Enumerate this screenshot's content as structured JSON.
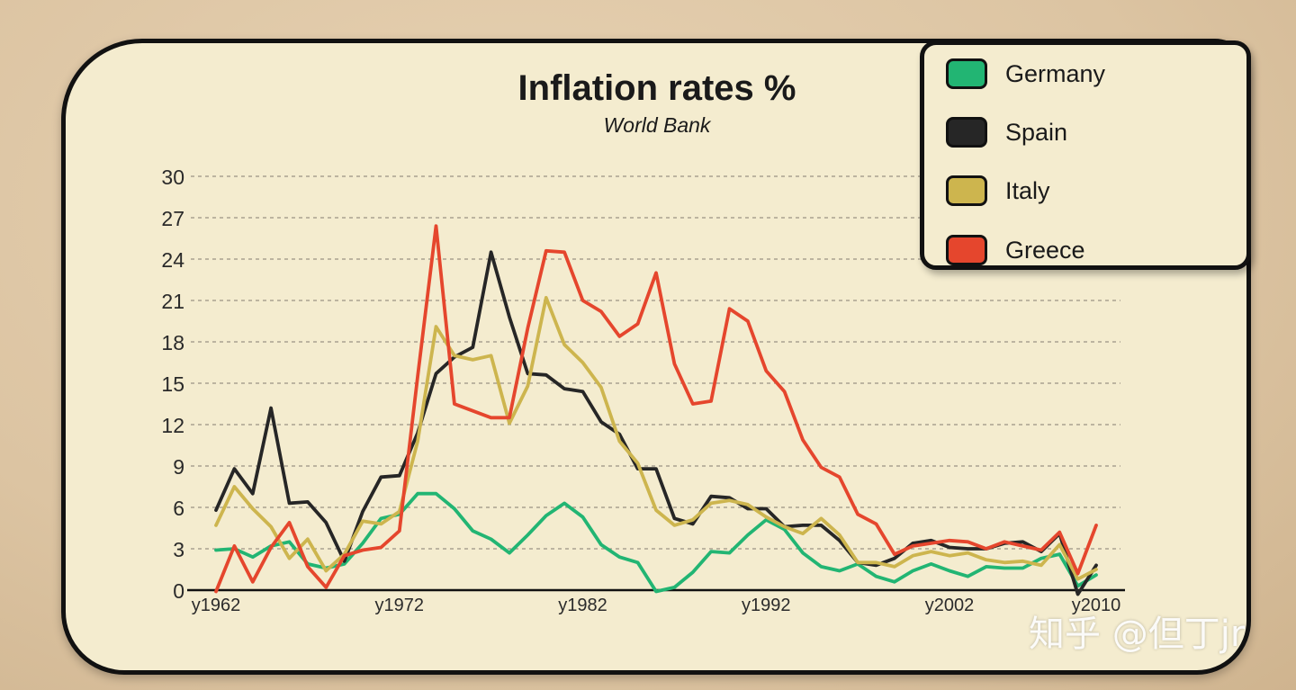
{
  "chart_data": {
    "type": "line",
    "title": "Inflation rates %",
    "subtitle": "World Bank",
    "xlabel": "",
    "ylabel": "",
    "x": [
      1962,
      1963,
      1964,
      1965,
      1966,
      1967,
      1968,
      1969,
      1970,
      1971,
      1972,
      1973,
      1974,
      1975,
      1976,
      1977,
      1978,
      1979,
      1980,
      1981,
      1982,
      1983,
      1984,
      1985,
      1986,
      1987,
      1988,
      1989,
      1990,
      1991,
      1992,
      1993,
      1994,
      1995,
      1996,
      1997,
      1998,
      1999,
      2000,
      2001,
      2002,
      2003,
      2004,
      2005,
      2006,
      2007,
      2008,
      2009,
      2010
    ],
    "xticks": [
      {
        "value": 1962,
        "label": "y1962"
      },
      {
        "value": 1972,
        "label": "y1972"
      },
      {
        "value": 1982,
        "label": "y1982"
      },
      {
        "value": 1992,
        "label": "y1992"
      },
      {
        "value": 2002,
        "label": "y2002"
      },
      {
        "value": 2010,
        "label": "y2010"
      }
    ],
    "yticks": [
      0,
      3,
      6,
      9,
      12,
      15,
      18,
      21,
      24,
      27,
      30
    ],
    "ylim": [
      0,
      30
    ],
    "grid": "horizontal-dashed",
    "legend": "top-right",
    "series": [
      {
        "name": "Germany",
        "color": "#22b573",
        "values": [
          2.9,
          3.0,
          2.4,
          3.2,
          3.5,
          1.9,
          1.6,
          1.9,
          3.4,
          5.2,
          5.5,
          7.0,
          7.0,
          5.9,
          4.3,
          3.7,
          2.7,
          4.0,
          5.4,
          6.3,
          5.3,
          3.3,
          2.4,
          2.0,
          -0.1,
          0.2,
          1.3,
          2.8,
          2.7,
          4.0,
          5.1,
          4.4,
          2.7,
          1.7,
          1.4,
          1.9,
          1.0,
          0.6,
          1.4,
          1.9,
          1.4,
          1.0,
          1.7,
          1.6,
          1.6,
          2.3,
          2.6,
          0.3,
          1.1
        ]
      },
      {
        "name": "Spain",
        "color": "#262626",
        "values": [
          5.8,
          8.8,
          7.0,
          13.2,
          6.3,
          6.4,
          4.9,
          2.1,
          5.7,
          8.2,
          8.3,
          11.4,
          15.7,
          16.9,
          17.6,
          24.5,
          19.8,
          15.7,
          15.6,
          14.6,
          14.4,
          12.2,
          11.3,
          8.8,
          8.8,
          5.2,
          4.8,
          6.8,
          6.7,
          5.9,
          5.9,
          4.6,
          4.7,
          4.7,
          3.6,
          2.0,
          1.8,
          2.3,
          3.4,
          3.6,
          3.1,
          3.0,
          3.0,
          3.4,
          3.5,
          2.8,
          4.1,
          -0.3,
          1.8
        ]
      },
      {
        "name": "Italy",
        "color": "#cdb54e",
        "values": [
          4.7,
          7.5,
          5.9,
          4.6,
          2.3,
          3.7,
          1.4,
          2.6,
          5.0,
          4.8,
          5.7,
          10.8,
          19.1,
          17.0,
          16.7,
          17.0,
          12.1,
          14.8,
          21.2,
          17.8,
          16.5,
          14.7,
          10.8,
          9.2,
          5.8,
          4.7,
          5.1,
          6.3,
          6.5,
          6.2,
          5.3,
          4.6,
          4.1,
          5.2,
          4.0,
          2.0,
          2.0,
          1.7,
          2.5,
          2.8,
          2.5,
          2.7,
          2.2,
          2.0,
          2.1,
          1.8,
          3.3,
          0.8,
          1.5
        ]
      },
      {
        "name": "Greece",
        "color": "#e5462d",
        "values": [
          -0.1,
          3.2,
          0.6,
          3.1,
          4.9,
          1.7,
          0.2,
          2.5,
          2.9,
          3.1,
          4.3,
          15.5,
          26.4,
          13.5,
          13.0,
          12.5,
          12.5,
          19.0,
          24.6,
          24.5,
          21.0,
          20.2,
          18.4,
          19.3,
          23.0,
          16.4,
          13.5,
          13.7,
          20.4,
          19.5,
          15.9,
          14.4,
          10.9,
          8.9,
          8.2,
          5.5,
          4.8,
          2.6,
          3.2,
          3.4,
          3.6,
          3.5,
          3.0,
          3.5,
          3.2,
          2.9,
          4.2,
          1.2,
          4.7
        ]
      }
    ]
  },
  "watermark": "知乎 @但丁jr"
}
